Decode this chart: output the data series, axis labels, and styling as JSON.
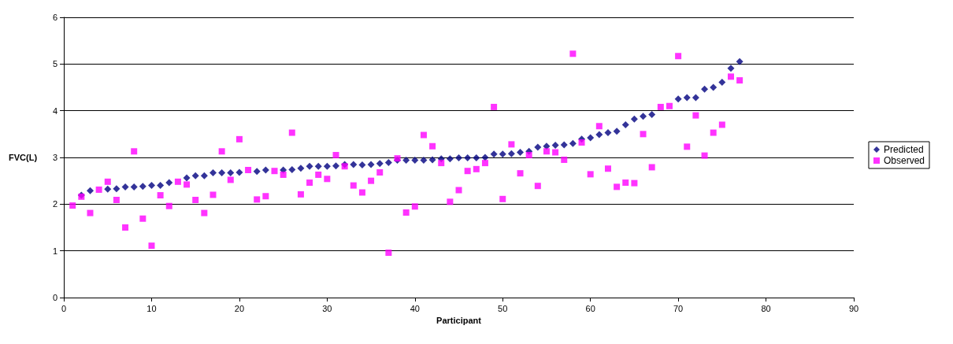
{
  "chart_data": {
    "type": "scatter",
    "xlabel": "Participant",
    "ylabel": "FVC(L)",
    "x": [
      1,
      2,
      3,
      4,
      5,
      6,
      7,
      8,
      9,
      10,
      11,
      12,
      13,
      14,
      15,
      16,
      17,
      18,
      19,
      20,
      21,
      22,
      23,
      24,
      25,
      26,
      27,
      28,
      29,
      30,
      31,
      32,
      33,
      34,
      35,
      36,
      37,
      38,
      39,
      40,
      41,
      42,
      43,
      44,
      45,
      46,
      47,
      48,
      49,
      50,
      51,
      52,
      53,
      54,
      55,
      56,
      57,
      58,
      59,
      60,
      61,
      62,
      63,
      64,
      65,
      66,
      67,
      68,
      69,
      70,
      71,
      72,
      73,
      74,
      75,
      76,
      77
    ],
    "series": [
      {
        "name": "Predicted",
        "color": "#000080",
        "marker": "diamond",
        "values": [
          null,
          2.19,
          2.29,
          null,
          2.32,
          2.33,
          2.37,
          2.37,
          2.38,
          2.4,
          2.4,
          2.46,
          null,
          2.56,
          2.61,
          2.61,
          2.67,
          2.67,
          2.67,
          2.68,
          null,
          2.7,
          2.73,
          null,
          2.73,
          2.74,
          2.77,
          2.81,
          2.81,
          2.81,
          2.82,
          2.85,
          2.85,
          2.84,
          2.85,
          2.87,
          2.89,
          2.94,
          2.94,
          2.94,
          2.94,
          2.95,
          2.97,
          2.97,
          2.99,
          2.99,
          2.99,
          3.0,
          3.07,
          3.07,
          3.08,
          3.11,
          3.13,
          3.22,
          3.24,
          3.26,
          3.27,
          3.3,
          3.39,
          3.42,
          3.49,
          3.53,
          3.56,
          3.7,
          3.82,
          3.88,
          3.92,
          null,
          null,
          4.25,
          4.28,
          4.28,
          4.46,
          4.5,
          4.61,
          4.91,
          5.05
        ]
      },
      {
        "name": "Observed",
        "color": "#ff00ff",
        "marker": "square",
        "values": [
          1.97,
          2.16,
          1.81,
          2.31,
          2.48,
          2.09,
          1.5,
          3.13,
          1.69,
          1.11,
          2.19,
          1.96,
          2.48,
          2.42,
          2.09,
          1.81,
          2.2,
          3.13,
          2.52,
          3.39,
          2.73,
          2.1,
          2.17,
          2.71,
          2.63,
          3.53,
          2.21,
          2.46,
          2.63,
          2.54,
          3.05,
          2.81,
          2.4,
          2.25,
          2.5,
          2.68,
          0.96,
          2.98,
          1.82,
          1.95,
          3.48,
          3.24,
          2.88,
          2.05,
          2.3,
          2.71,
          2.75,
          2.88,
          4.08,
          2.11,
          3.28,
          2.66,
          3.05,
          2.39,
          3.13,
          3.11,
          2.95,
          5.22,
          3.32,
          2.64,
          3.67,
          2.76,
          2.37,
          2.46,
          2.45,
          3.5,
          2.79,
          4.08,
          4.1,
          5.17,
          3.23,
          3.9,
          3.04,
          3.53,
          3.7,
          4.73,
          4.65
        ]
      }
    ],
    "xlim": [
      0,
      90
    ],
    "xticks": [
      0,
      10,
      20,
      30,
      40,
      50,
      60,
      70,
      80,
      90
    ],
    "ylim": [
      0,
      6
    ],
    "yticks": [
      0,
      1,
      2,
      3,
      4,
      5,
      6
    ],
    "grid": "y",
    "legend": "right"
  }
}
